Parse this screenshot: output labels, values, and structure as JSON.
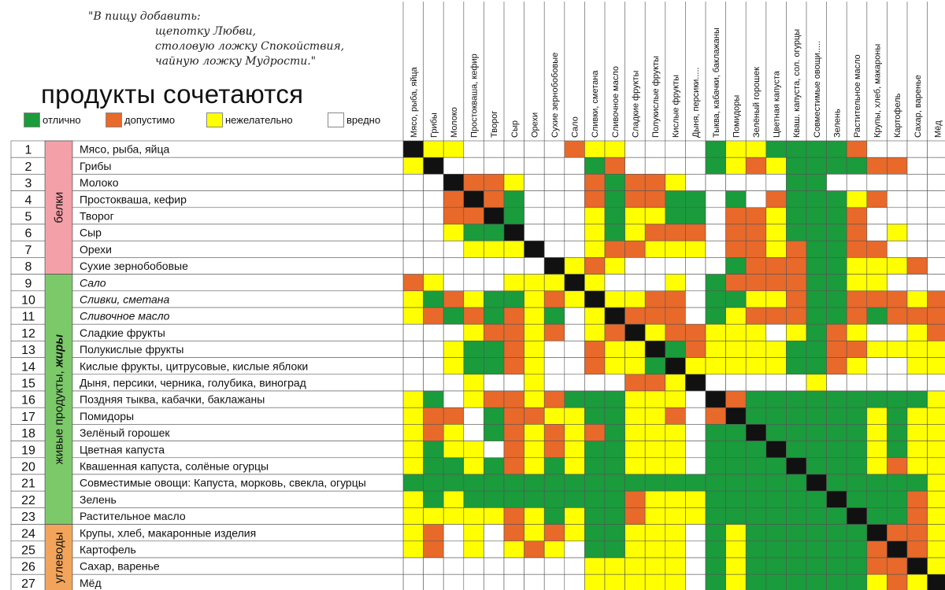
{
  "quote": {
    "lines": [
      "\"В пищу добавить:",
      "щепотку Любви,",
      "столовую ложку Спокойствия,",
      "чайную ложку Мудрости.\""
    ]
  },
  "title": "продукты сочетаются",
  "legend": [
    {
      "label": "отлично",
      "color": "#1a9b3c"
    },
    {
      "label": "допустимо",
      "color": "#e8692a"
    },
    {
      "label": "нежелательно",
      "color": "#ffff00"
    },
    {
      "label": "вредно",
      "color": "#ffffff"
    }
  ],
  "colors": {
    "G": "#1a9b3c",
    "O": "#e8692a",
    "Y": "#ffff00",
    "W": "#ffffff",
    "X": "#111111"
  },
  "groups": [
    {
      "label": "белки",
      "label_rest": "",
      "from": 1,
      "to": 8,
      "color": "#f4a0a8"
    },
    {
      "label": "живые продукты, ",
      "label_rest": "жиры",
      "from": 9,
      "to": 23,
      "color": "#7cc96a"
    },
    {
      "label": "углеводы",
      "label_rest": "",
      "from": 24,
      "to": 27,
      "color": "#f2a55a"
    }
  ],
  "products": [
    {
      "num": "1",
      "name": "Мясо, рыба, яйца",
      "italic": false
    },
    {
      "num": "2",
      "name": "Грибы",
      "italic": false
    },
    {
      "num": "3",
      "name": "Молоко",
      "italic": false
    },
    {
      "num": "4",
      "name": "Простокваша, кефир",
      "italic": false
    },
    {
      "num": "5",
      "name": "Творог",
      "italic": false
    },
    {
      "num": "6",
      "name": "Сыр",
      "italic": false
    },
    {
      "num": "7",
      "name": "Орехи",
      "italic": false
    },
    {
      "num": "8",
      "name": "Сухие зернобобовые",
      "italic": false
    },
    {
      "num": "9",
      "name": "Сало",
      "italic": true
    },
    {
      "num": "10",
      "name": "Сливки, сметана",
      "italic": true
    },
    {
      "num": "11",
      "name": "Сливочное масло",
      "italic": true
    },
    {
      "num": "12",
      "name": "Сладкие фрукты",
      "italic": false
    },
    {
      "num": "13",
      "name": "Полукислые фрукты",
      "italic": false
    },
    {
      "num": "14",
      "name": "Кислые фрукты, цитрусовые, кислые яблоки",
      "italic": false
    },
    {
      "num": "15",
      "name": "Дыня, персики, черника, голубика, виноград",
      "italic": false
    },
    {
      "num": "16",
      "name": "Поздняя тыква, кабачки, баклажаны",
      "italic": false
    },
    {
      "num": "17",
      "name": "Помидоры",
      "italic": false
    },
    {
      "num": "18",
      "name": "Зелёный горошек",
      "italic": false
    },
    {
      "num": "19",
      "name": "Цветная капуста",
      "italic": false
    },
    {
      "num": "20",
      "name": "Квашенная капуста, солёные огурцы",
      "italic": false
    },
    {
      "num": "21",
      "name": "Совместимые овощи: Капуста, морковь, свекла, огурцы",
      "italic": false
    },
    {
      "num": "22",
      "name": "Зелень",
      "italic": false
    },
    {
      "num": "23",
      "name": "Растительное масло",
      "italic": false
    },
    {
      "num": "24",
      "name": "Крупы, хлеб, макаронные изделия",
      "italic": false
    },
    {
      "num": "25",
      "name": "Картофель",
      "italic": false
    },
    {
      "num": "26",
      "name": "Сахар, варенье",
      "italic": false
    },
    {
      "num": "27",
      "name": "Мёд",
      "italic": false
    }
  ],
  "column_headers": [
    "Мясо, рыба, яйца",
    "Грибы",
    "Молоко",
    "Простокваша, кефир",
    "Творог",
    "Сыр",
    "Орехи",
    "Сухие зернобобовые",
    "Сало",
    "Сливки, сметана",
    "Сливочное масло",
    "Сладкие фрукты",
    "Полукислые фрукты",
    "Кислые фрукты",
    "Дыня, персики.....",
    "Тыква, кабачки, баклажаны",
    "Помидоры",
    "Зелёный горошек",
    "Цветная капуста",
    "Кваш. капуста, сол. огурцы",
    "Совместимые овощи.....",
    "Зелень",
    "Растительное масло",
    "Крупы, хлеб, макароны",
    "Картофель",
    "Сахар, варенье",
    "Мёд"
  ],
  "matrix": [
    "XYYWWWWWOYYWWWWGYYGGGGOWWWW",
    "YXWWWWWWWGOWWWWGYOYGGGGOOWW",
    "WWXOOYWWWOGOOYWWWWWGGWWWWWW",
    "WWOXOGWWWOGOOGGWGWOGGGYOWWW",
    "WWOOXGWWWYGYYGGWOOYGGGOWWWW",
    "WWYGGXWWWYGYOOOWOOYGGGOWYWW",
    "WWWYYYXWWYOOYYYWOOYOGGOOWWW",
    "WWWWWWWXYOYWWWWWGOOOGGYYYOW",
    "OYWWWYYYXYWWWYWGOOOOGGYYWWW",
    "YGOYGGYOYXYYOOWGGYYOGGOOOYO",
    "YOGOGOYGWYXOOOWGYOOOGGOGOOO",
    "WWWYOOYOWYOXYOOYYYWYGOYWWYO",
    "WWYGGOYWWOYYXGOYYYYGGOOYYYY",
    "WWYGGOYWWOYYGXYYYYYGGOYWWYY",
    "WWWYWWYWWWWOOYXWWWWWYWWWWWW",
    "YGWYOOYOGGGYYYWXOGGGGGGGGGY",
    "YOOWGOOYYGGYYOWOXGGGGGGYGYY",
    "YOYWGOYOYOGYYYWGGXGGGGGYGYY",
    "YGYYWOYOYGGYYYWGGGXGGGGYGYY",
    "YGGYGOYGYGGYYYWGGGGXGGGYOYY",
    "GGGGGGGGGGGGGGGGGGGGXGGGGGY",
    "YGYGGGGGGGGOYYYGGGGGGXGGGOY",
    "YYYYYOYGYGGOYYYGGGGGGGXGGOY",
    "YOWYWOYOYGGYYYWGYGGGGGGXOOY",
    "YOWYWYOYWGGYYYWGYGGGGGGOXOY",
    "WWWWWWWWWYYYYYWGYGGGGGGOOXY",
    "WWWWWWWWWYYYYYWGYGGGGGGYOYX"
  ]
}
